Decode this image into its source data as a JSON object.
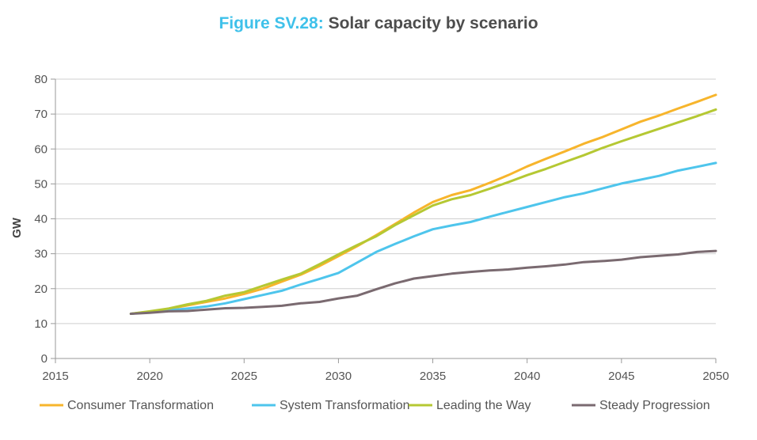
{
  "title_prefix": "Figure SV.28:",
  "title_text": "Solar capacity by scenario",
  "chart_data": {
    "type": "line",
    "ylabel": "GW",
    "xlim": [
      2015,
      2050
    ],
    "ylim": [
      0,
      80
    ],
    "xticks": [
      2015,
      2020,
      2025,
      2030,
      2035,
      2040,
      2045,
      2050
    ],
    "yticks": [
      0,
      10,
      20,
      30,
      40,
      50,
      60,
      70,
      80
    ],
    "grid": "horizontal",
    "legend_position": "bottom",
    "x": [
      2019,
      2020,
      2021,
      2022,
      2023,
      2024,
      2025,
      2026,
      2027,
      2028,
      2029,
      2030,
      2031,
      2032,
      2033,
      2034,
      2035,
      2036,
      2037,
      2038,
      2039,
      2040,
      2041,
      2042,
      2043,
      2044,
      2045,
      2046,
      2047,
      2048,
      2049,
      2050
    ],
    "series": [
      {
        "name": "Consumer Transformation",
        "color": "#f7b52c",
        "values": [
          12.8,
          13.4,
          14.2,
          15.2,
          16.2,
          17.2,
          18.5,
          20.0,
          22.0,
          24.0,
          26.5,
          29.3,
          32.2,
          35.3,
          38.5,
          41.8,
          44.8,
          46.8,
          48.2,
          50.3,
          52.5,
          55.0,
          57.2,
          59.3,
          61.5,
          63.4,
          65.6,
          67.8,
          69.6,
          71.6,
          73.5,
          75.5
        ]
      },
      {
        "name": "System Transformation",
        "color": "#4ec5ec",
        "values": [
          12.8,
          13.3,
          13.8,
          14.3,
          14.9,
          15.8,
          17.0,
          18.2,
          19.4,
          21.2,
          22.8,
          24.5,
          27.5,
          30.5,
          32.8,
          35.0,
          37.0,
          38.1,
          39.1,
          40.6,
          42.0,
          43.4,
          44.8,
          46.2,
          47.3,
          48.7,
          50.1,
          51.2,
          52.3,
          53.8,
          54.9,
          56.0
        ]
      },
      {
        "name": "Leading the Way",
        "color": "#b5c833",
        "values": [
          12.8,
          13.5,
          14.3,
          15.5,
          16.5,
          18.0,
          19.0,
          20.8,
          22.6,
          24.3,
          27.0,
          29.8,
          32.5,
          35.0,
          38.2,
          41.0,
          43.8,
          45.6,
          46.8,
          48.6,
          50.5,
          52.5,
          54.3,
          56.3,
          58.2,
          60.3,
          62.2,
          64.0,
          65.8,
          67.6,
          69.4,
          71.3
        ]
      },
      {
        "name": "Steady Progression",
        "color": "#7a6a70",
        "values": [
          12.8,
          13.1,
          13.5,
          13.6,
          14.0,
          14.4,
          14.5,
          14.8,
          15.1,
          15.8,
          16.2,
          17.2,
          18.0,
          19.8,
          21.5,
          22.9,
          23.6,
          24.3,
          24.8,
          25.2,
          25.5,
          26.0,
          26.4,
          26.9,
          27.6,
          27.9,
          28.3,
          29.0,
          29.4,
          29.8,
          30.5,
          30.8
        ]
      }
    ]
  }
}
